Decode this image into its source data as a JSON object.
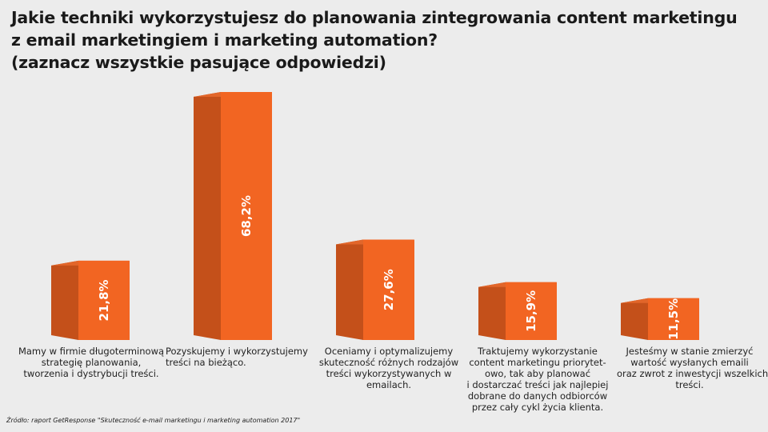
{
  "chart_data": {
    "type": "bar",
    "title": "Jakie techniki wykorzystujesz do planowania zintegrowania content marketingu z email marketingiem i marketing automation? (zaznacz wszystkie pasujące odpowiedzi)",
    "title_lines": [
      "Jakie techniki wykorzystujesz do planowania zintegrowania content marketingu",
      "z email marketingiem i marketing automation?",
      "(zaznacz wszystkie pasujące odpowiedzi)"
    ],
    "categories": [
      "Mamy w firmie długoterminową strategię planowania, tworzenia i dystrybucji treści.",
      "Pozyskujemy i wykorzystujemy treści na bieżąco.",
      "Oceniamy i optymalizujemy skuteczność różnych rodzajów treści wykorzystywanych w emailach.",
      "Traktujemy wykorzystanie content marketingu priorytet-owo, tak aby planować i dostarczać treści jak najlepiej dobrane do danych odbiorców przez cały cykl życia klienta.",
      "Jesteśmy w stanie zmierzyć wartość wysłanych emaili oraz zwrot z inwestycji wszelkich treści."
    ],
    "category_lines": [
      [
        "Mamy w firmie długoterminową",
        "strategię planowania,",
        "tworzenia i dystrybucji treści."
      ],
      [
        "Pozyskujemy i wykorzystujemy",
        "treści na bieżąco."
      ],
      [
        "Oceniamy i optymalizujemy",
        "skuteczność różnych rodzajów",
        "treści wykorzystywanych w",
        "emailach."
      ],
      [
        "Traktujemy wykorzystanie",
        "content marketingu priorytet-",
        "owo, tak aby planować",
        "i dostarczać treści jak najlepiej",
        "dobrane do danych odbiorców",
        "przez cały cykl życia klienta."
      ],
      [
        "Jesteśmy w stanie zmierzyć",
        "wartość wysłanych emaili",
        "oraz zwrot z inwestycji wszelkich",
        "treści."
      ]
    ],
    "values": [
      21.8,
      68.2,
      27.6,
      15.9,
      11.5
    ],
    "value_labels": [
      "21,8%",
      "68,2%",
      "27,6%",
      "15,9%",
      "11,5%"
    ],
    "unit": "%",
    "ylim": [
      0,
      70
    ],
    "grid": false,
    "legend": "none",
    "colors": {
      "front": "#f26522",
      "side": "#c4501a",
      "top": "#e2662a",
      "label": "#ffffff"
    }
  },
  "source": "Źródło: raport GetResponse \"Skuteczność e-mail marketingu i marketing automation 2017\""
}
